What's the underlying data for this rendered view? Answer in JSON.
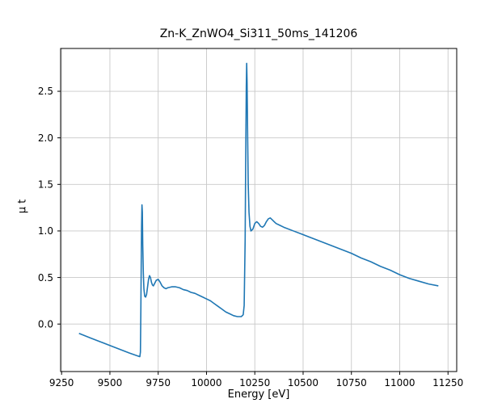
{
  "figure": {
    "title": "Zn-K_ZnWO4_Si311_50ms_141206",
    "xlabel": "Energy [eV]",
    "ylabel": "μ t"
  },
  "chart_data": {
    "type": "line",
    "title": "Zn-K_ZnWO4_Si311_50ms_141206",
    "xlabel": "Energy [eV]",
    "ylabel": "μ t",
    "xlim": [
      9245,
      11295
    ],
    "ylim": [
      -0.51,
      2.96
    ],
    "xticks": [
      9250,
      9500,
      9750,
      10000,
      10250,
      10500,
      10750,
      11000,
      11250
    ],
    "yticks": [
      0.0,
      0.5,
      1.0,
      1.5,
      2.0,
      2.5
    ],
    "grid": true,
    "grid_color": "#c8c8c8",
    "line_color": "#1f77b4",
    "legend": "none",
    "series": [
      {
        "name": "mu_t",
        "points": [
          [
            9340,
            -0.1
          ],
          [
            9400,
            -0.15
          ],
          [
            9450,
            -0.19
          ],
          [
            9500,
            -0.23
          ],
          [
            9550,
            -0.27
          ],
          [
            9600,
            -0.31
          ],
          [
            9640,
            -0.34
          ],
          [
            9655,
            -0.35
          ],
          [
            9658,
            -0.3
          ],
          [
            9660,
            0.1
          ],
          [
            9662,
            0.6
          ],
          [
            9664,
            1.05
          ],
          [
            9666,
            1.28
          ],
          [
            9668,
            1.2
          ],
          [
            9670,
            0.85
          ],
          [
            9673,
            0.55
          ],
          [
            9676,
            0.38
          ],
          [
            9680,
            0.3
          ],
          [
            9685,
            0.29
          ],
          [
            9690,
            0.32
          ],
          [
            9695,
            0.4
          ],
          [
            9700,
            0.48
          ],
          [
            9705,
            0.52
          ],
          [
            9710,
            0.5
          ],
          [
            9715,
            0.45
          ],
          [
            9720,
            0.42
          ],
          [
            9725,
            0.41
          ],
          [
            9730,
            0.43
          ],
          [
            9740,
            0.47
          ],
          [
            9750,
            0.48
          ],
          [
            9760,
            0.45
          ],
          [
            9770,
            0.41
          ],
          [
            9780,
            0.39
          ],
          [
            9790,
            0.38
          ],
          [
            9800,
            0.39
          ],
          [
            9820,
            0.4
          ],
          [
            9840,
            0.4
          ],
          [
            9860,
            0.39
          ],
          [
            9880,
            0.37
          ],
          [
            9900,
            0.36
          ],
          [
            9920,
            0.34
          ],
          [
            9940,
            0.33
          ],
          [
            9960,
            0.31
          ],
          [
            9980,
            0.29
          ],
          [
            10000,
            0.27
          ],
          [
            10020,
            0.25
          ],
          [
            10040,
            0.22
          ],
          [
            10060,
            0.19
          ],
          [
            10080,
            0.16
          ],
          [
            10100,
            0.13
          ],
          [
            10120,
            0.11
          ],
          [
            10140,
            0.09
          ],
          [
            10160,
            0.08
          ],
          [
            10180,
            0.08
          ],
          [
            10190,
            0.1
          ],
          [
            10195,
            0.2
          ],
          [
            10200,
            0.9
          ],
          [
            10203,
            1.8
          ],
          [
            10206,
            2.55
          ],
          [
            10208,
            2.8
          ],
          [
            10210,
            2.6
          ],
          [
            10213,
            2.0
          ],
          [
            10216,
            1.5
          ],
          [
            10220,
            1.2
          ],
          [
            10225,
            1.05
          ],
          [
            10230,
            1.0
          ],
          [
            10240,
            1.02
          ],
          [
            10250,
            1.08
          ],
          [
            10260,
            1.1
          ],
          [
            10270,
            1.08
          ],
          [
            10280,
            1.05
          ],
          [
            10290,
            1.04
          ],
          [
            10300,
            1.06
          ],
          [
            10310,
            1.1
          ],
          [
            10320,
            1.13
          ],
          [
            10330,
            1.14
          ],
          [
            10340,
            1.12
          ],
          [
            10350,
            1.1
          ],
          [
            10360,
            1.08
          ],
          [
            10380,
            1.06
          ],
          [
            10400,
            1.04
          ],
          [
            10450,
            1.0
          ],
          [
            10500,
            0.96
          ],
          [
            10550,
            0.92
          ],
          [
            10600,
            0.88
          ],
          [
            10650,
            0.84
          ],
          [
            10700,
            0.8
          ],
          [
            10750,
            0.76
          ],
          [
            10800,
            0.71
          ],
          [
            10850,
            0.67
          ],
          [
            10900,
            0.62
          ],
          [
            10950,
            0.58
          ],
          [
            11000,
            0.53
          ],
          [
            11050,
            0.49
          ],
          [
            11100,
            0.46
          ],
          [
            11150,
            0.43
          ],
          [
            11200,
            0.41
          ]
        ]
      }
    ]
  }
}
